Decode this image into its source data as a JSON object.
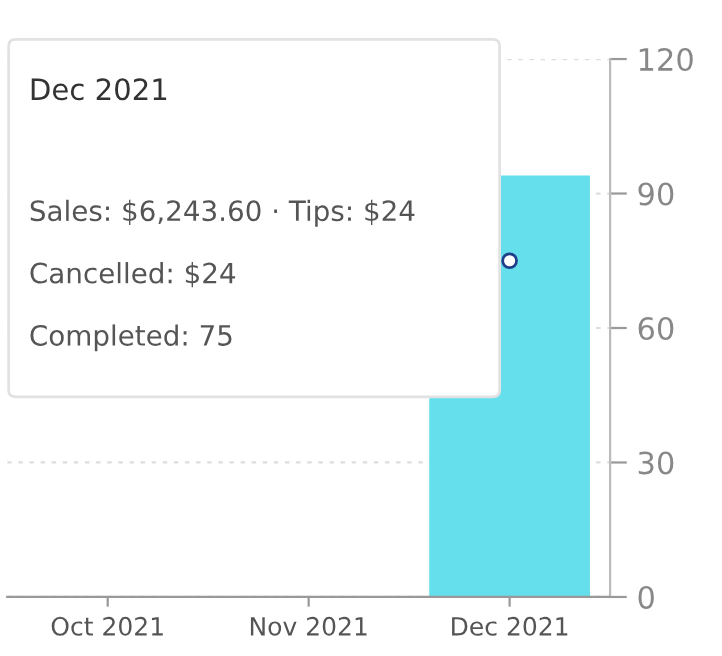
{
  "chart_data": {
    "type": "bar",
    "categories": [
      "Oct 2021",
      "Nov 2021",
      "Dec 2021"
    ],
    "series": [
      {
        "color": "#66dfec",
        "values": [
          null,
          null,
          94
        ]
      },
      {
        "type": "line",
        "color": "#1f3f8a",
        "values": [
          null,
          null,
          75
        ]
      }
    ],
    "ylim": [
      0,
      120
    ],
    "yticks": [
      0,
      30,
      60,
      90,
      120
    ],
    "grid": "y",
    "marker": "circle",
    "annotations": [
      "Dec 2021",
      "Sales: $6,243.60 · Tips: $24",
      "Cancelled: $24",
      "Completed: 75"
    ]
  }
}
